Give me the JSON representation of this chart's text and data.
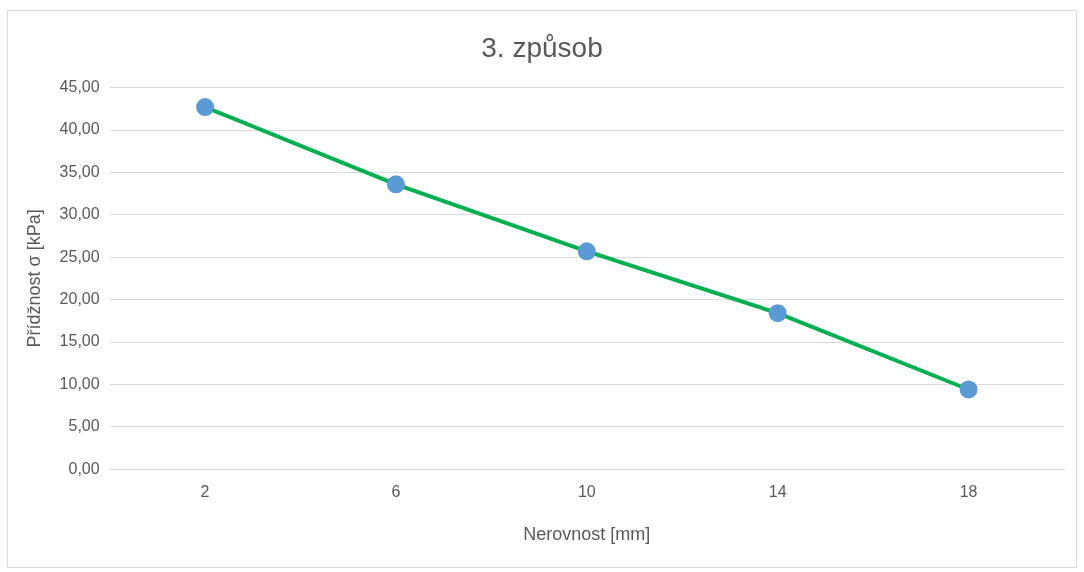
{
  "chart_data": {
    "type": "line",
    "title": "3. způsob",
    "xlabel": "Nerovnost [mm]",
    "ylabel": "Přídžnost σ [kPa]",
    "categories": [
      "2",
      "6",
      "10",
      "14",
      "18"
    ],
    "series": [
      {
        "color": "#00b050",
        "colors": [
          "#5b9bd5",
          "#5b9bd5",
          "#5b9bd5",
          "#5b9bd5",
          "#5b9bd5"
        ],
        "values": [
          42.7,
          33.6,
          25.7,
          18.4,
          9.4
        ]
      }
    ],
    "ylim": [
      0,
      45
    ],
    "yticks": [
      {
        "value": 0,
        "label": "0,00"
      },
      {
        "value": 5,
        "label": "5,00"
      },
      {
        "value": 10,
        "label": "10,00"
      },
      {
        "value": 15,
        "label": "15,00"
      },
      {
        "value": 20,
        "label": "20,00"
      },
      {
        "value": 25,
        "label": "25,00"
      },
      {
        "value": 30,
        "label": "30,00"
      },
      {
        "value": 35,
        "label": "35,00"
      },
      {
        "value": 40,
        "label": "40,00"
      },
      {
        "value": 45,
        "label": "45,00"
      }
    ],
    "grid": "y",
    "legend": false,
    "marker": "circle",
    "line_style": "solid"
  }
}
